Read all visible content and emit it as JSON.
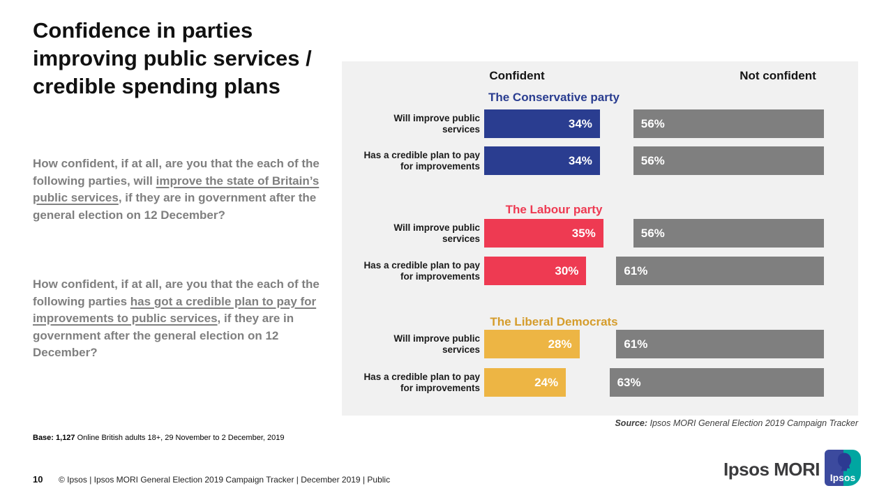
{
  "slide": {
    "title": "Confidence in parties improving public services / credible spending plans",
    "questions": [
      {
        "pre": "How confident, if at all, are you that the each of the following parties, will ",
        "underlined": "improve the state of Britain’s public services",
        "post": ", if they are in government after the general election on 12 December?"
      },
      {
        "pre": "How confident, if at all, are you that the each of the following parties ",
        "underlined": "has got a credible plan to pay for improvements to public services",
        "post": ", if they are in government after the general election on 12 December?"
      }
    ],
    "base_note": {
      "label": "Base: 1,127",
      "text": " Online British adults 18+, 29 November to 2 December, 2019"
    },
    "source_note": {
      "label": "Source:",
      "text": " Ipsos MORI General Election 2019 Campaign Tracker"
    },
    "footer": {
      "page_number": "10",
      "text": "© Ipsos | Ipsos MORI General Election 2019 Campaign Tracker | December 2019 | Public"
    },
    "branding": {
      "wordmark": "Ipsos MORI",
      "badge_label": "Ipsos"
    }
  },
  "chart_data": {
    "type": "bar",
    "orientation": "horizontal",
    "diverging": true,
    "unit": "%",
    "axis_max": 100,
    "grid": false,
    "column_headers": [
      "Confident",
      "Not confident"
    ],
    "categories": [
      "Will improve public services",
      "Has a credible plan to pay for improvements"
    ],
    "not_confident_color": "#7f7f7f",
    "panel_background": "#f1f1f1",
    "groups": [
      {
        "party": "The Conservative party",
        "header_color": "#2a3d90",
        "bar_color": "#2a3d90",
        "rows": [
          {
            "label": "Will improve public services",
            "confident": 34,
            "not_confident": 56
          },
          {
            "label": "Has a credible plan to pay for improvements",
            "confident": 34,
            "not_confident": 56
          }
        ]
      },
      {
        "party": "The Labour party",
        "header_color": "#ee3a52",
        "bar_color": "#ee3a52",
        "rows": [
          {
            "label": "Will improve public services",
            "confident": 35,
            "not_confident": 56
          },
          {
            "label": "Has a credible plan to pay for improvements",
            "confident": 30,
            "not_confident": 61
          }
        ]
      },
      {
        "party": "The Liberal Democrats",
        "header_color": "#d59c2b",
        "bar_color": "#edb544",
        "rows": [
          {
            "label": "Will improve public services",
            "confident": 28,
            "not_confident": 61
          },
          {
            "label": "Has a credible plan to pay for improvements",
            "confident": 24,
            "not_confident": 63
          }
        ]
      }
    ]
  }
}
